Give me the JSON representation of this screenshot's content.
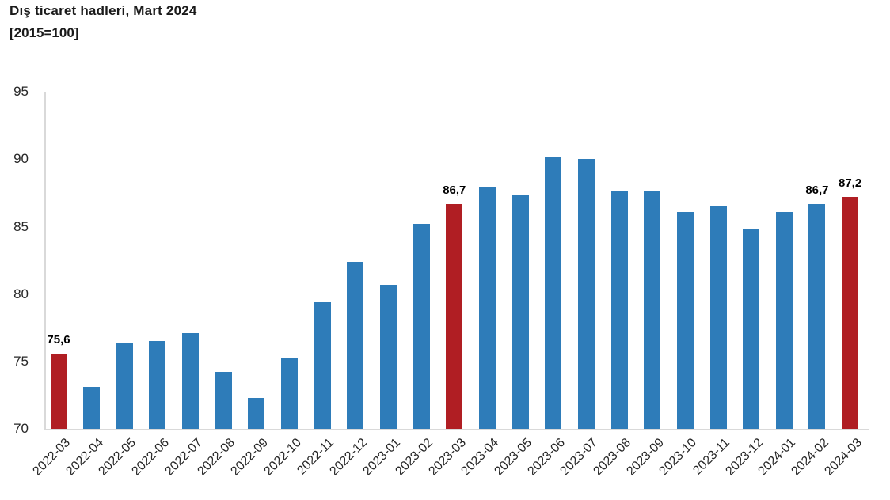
{
  "header": {
    "title": "Dış ticaret hadleri, Mart 2024",
    "subtitle": "[2015=100]"
  },
  "chart_data": {
    "type": "bar",
    "title": "Dış ticaret hadleri, Mart 2024",
    "subtitle": "[2015=100]",
    "categories": [
      "2022-03",
      "2022-04",
      "2022-05",
      "2022-06",
      "2022-07",
      "2022-08",
      "2022-09",
      "2022-10",
      "2022-11",
      "2022-12",
      "2023-01",
      "2023-02",
      "2023-03",
      "2023-04",
      "2023-05",
      "2023-06",
      "2023-07",
      "2023-08",
      "2023-09",
      "2023-10",
      "2023-11",
      "2023-12",
      "2024-01",
      "2024-02",
      "2024-03"
    ],
    "values": [
      75.6,
      73.1,
      76.4,
      76.5,
      77.1,
      74.2,
      72.3,
      75.2,
      79.4,
      82.4,
      80.7,
      85.2,
      86.7,
      88.0,
      87.3,
      90.2,
      90.0,
      87.7,
      87.7,
      86.1,
      86.5,
      84.8,
      86.1,
      86.7,
      87.2
    ],
    "value_labels": [
      "75,6",
      null,
      null,
      null,
      null,
      null,
      null,
      null,
      null,
      null,
      null,
      null,
      "86,7",
      null,
      null,
      null,
      null,
      null,
      null,
      null,
      null,
      null,
      null,
      "86,7",
      "87,2"
    ],
    "highlighted_indices": [
      0,
      12,
      24
    ],
    "yticks": [
      70,
      75,
      80,
      85,
      90,
      95
    ],
    "ylim": [
      70,
      95
    ],
    "xlabel": "",
    "ylabel": "",
    "grid": false,
    "legend": false,
    "colors": {
      "bar": "#2E7CB9",
      "highlight": "#B01E23",
      "axis_line": "#D9D9D9",
      "title_text": "#1A1A1A",
      "axis_text": "#262626",
      "value_label_text": "#000000"
    }
  }
}
